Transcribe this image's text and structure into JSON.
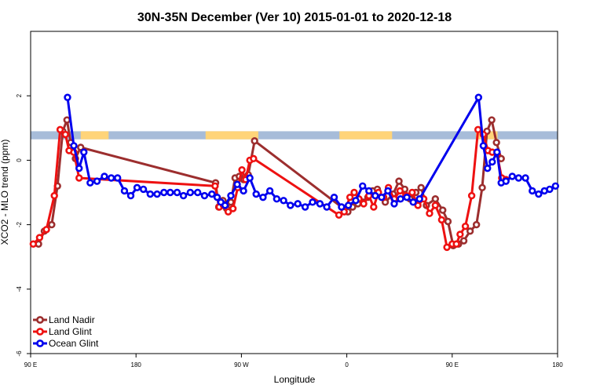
{
  "chart_data": {
    "type": "line",
    "title": "30N-35N December (Ver 10)   2015-01-01 to 2020-12-18",
    "xlabel": "Longitude",
    "ylabel": "XCO2 - MLO trend (ppm)",
    "xlim": [
      0,
      100
    ],
    "ylim": [
      -6,
      4
    ],
    "x_ticks": [
      {
        "pos": 0,
        "label": "90 E"
      },
      {
        "pos": 20,
        "label": "180"
      },
      {
        "pos": 40,
        "label": "90 W"
      },
      {
        "pos": 60,
        "label": "0"
      },
      {
        "pos": 80,
        "label": "90 E"
      },
      {
        "pos": 100,
        "label": "180"
      }
    ],
    "y_ticks": [
      -6,
      -4,
      -2,
      0,
      2
    ],
    "grid": false,
    "legend_position": "bottom-left",
    "land_ocean_band": {
      "y_range": [
        0.65,
        0.9
      ],
      "land_color": "#FFD479",
      "ocean_color": "#A7BCD9",
      "land_spans": [
        [
          9.5,
          14.8
        ],
        [
          33.2,
          43.2
        ],
        [
          58.6,
          68.6
        ],
        [
          84.5,
          88.6
        ]
      ]
    },
    "series": [
      {
        "name": "Land Nadir",
        "color": "#9C2E2E",
        "x": [
          1.5,
          2.6,
          4.0,
          5.1,
          6.1,
          6.9,
          7.6,
          8.5,
          9.5,
          35.1,
          35.7,
          36.5,
          37.2,
          38.0,
          38.8,
          39.6,
          40.4,
          41.3,
          42.5,
          60.2,
          61.1,
          62.1,
          63.1,
          64.0,
          64.9,
          65.8,
          67.3,
          68.8,
          69.9,
          71.0,
          72.0,
          73.1,
          74.1,
          75.1,
          76.8,
          78.2,
          79.2,
          80.2,
          81.2,
          82.2,
          83.4,
          84.6,
          85.7,
          86.6,
          87.5,
          88.4,
          89.3
        ],
        "values": [
          -2.6,
          -2.2,
          -2.0,
          -0.8,
          0.9,
          1.25,
          0.55,
          0.05,
          0.4,
          -0.7,
          -1.45,
          -1.25,
          -1.5,
          -1.3,
          -0.55,
          -0.5,
          -0.6,
          -0.45,
          0.6,
          -1.6,
          -1.45,
          -1.35,
          -1.3,
          -1.15,
          -0.95,
          -0.9,
          -1.3,
          -1.05,
          -0.65,
          -0.9,
          -1.2,
          -1.0,
          -0.85,
          -1.4,
          -1.2,
          -1.55,
          -1.9,
          -2.65,
          -2.6,
          -2.5,
          -2.2,
          -2.0,
          -0.85,
          0.9,
          1.25,
          0.55,
          0.05
        ]
      },
      {
        "name": "Land Glint",
        "color": "#EE1111",
        "x": [
          0.5,
          1.7,
          3.0,
          4.5,
          5.6,
          6.6,
          7.3,
          8.2,
          9.2,
          35.0,
          35.8,
          36.6,
          37.5,
          38.4,
          39.3,
          40.1,
          40.8,
          41.6,
          42.3,
          58.5,
          59.5,
          60.6,
          61.4,
          62.3,
          63.2,
          64.2,
          65.1,
          66.0,
          67.0,
          67.9,
          69.0,
          70.1,
          71.2,
          72.4,
          73.5,
          74.6,
          75.7,
          76.8,
          78.0,
          79.0,
          80.0,
          80.8,
          81.5,
          82.5,
          83.7,
          84.9,
          85.9,
          86.8,
          87.6,
          88.5,
          89.4,
          90.2
        ],
        "values": [
          -2.6,
          -2.4,
          -2.15,
          -1.1,
          0.95,
          0.8,
          0.3,
          0.25,
          -0.55,
          -0.8,
          -1.45,
          -1.4,
          -1.6,
          -1.5,
          -0.85,
          -0.3,
          -0.6,
          0.0,
          0.05,
          -1.7,
          -1.6,
          -1.15,
          -1.0,
          -1.2,
          -1.35,
          -1.1,
          -1.45,
          -1.0,
          -1.15,
          -0.85,
          -1.2,
          -0.95,
          -1.1,
          -1.0,
          -1.4,
          -1.2,
          -1.65,
          -1.4,
          -1.85,
          -2.7,
          -2.6,
          -2.6,
          -2.3,
          -2.05,
          -1.1,
          0.95,
          0.8,
          0.3,
          0.25,
          0.2,
          -0.55,
          -0.6
        ]
      },
      {
        "name": "Ocean Glint",
        "color": "#0000EE",
        "x": [
          7.0,
          8.2,
          9.2,
          10.1,
          11.3,
          12.6,
          14.0,
          15.3,
          16.5,
          17.8,
          19.0,
          20.2,
          21.4,
          22.7,
          24.0,
          25.3,
          26.5,
          27.8,
          29.0,
          30.3,
          31.7,
          33.0,
          34.4,
          35.4,
          36.1,
          36.9,
          38.0,
          39.2,
          40.4,
          41.6,
          42.8,
          44.1,
          45.4,
          46.7,
          48.0,
          49.3,
          50.7,
          52.1,
          53.5,
          54.9,
          56.2,
          57.6,
          59.0,
          60.3,
          61.7,
          63.0,
          64.2,
          65.4,
          66.6,
          67.8,
          69.0,
          70.2,
          71.4,
          72.6,
          73.8,
          85.0,
          85.9,
          86.7,
          87.6,
          88.5,
          89.3,
          90.2,
          91.4,
          92.6,
          93.9,
          95.2,
          96.4,
          97.5,
          98.5,
          99.6
        ],
        "values": [
          1.95,
          0.45,
          -0.25,
          0.25,
          -0.7,
          -0.65,
          -0.5,
          -0.55,
          -0.55,
          -0.95,
          -1.1,
          -0.85,
          -0.9,
          -1.05,
          -1.05,
          -1.0,
          -1.0,
          -1.0,
          -1.1,
          -1.0,
          -1.0,
          -1.1,
          -1.05,
          -1.15,
          -1.3,
          -1.4,
          -1.1,
          -0.75,
          -0.95,
          -0.55,
          -1.05,
          -1.15,
          -0.95,
          -1.2,
          -1.25,
          -1.4,
          -1.35,
          -1.45,
          -1.3,
          -1.35,
          -1.45,
          -1.15,
          -1.45,
          -1.4,
          -1.25,
          -0.8,
          -0.95,
          -1.1,
          -1.15,
          -0.95,
          -1.35,
          -1.2,
          -1.15,
          -1.3,
          -1.2,
          1.95,
          0.45,
          -0.25,
          -0.05,
          0.25,
          -0.7,
          -0.65,
          -0.5,
          -0.55,
          -0.55,
          -0.95,
          -1.05,
          -0.95,
          -0.9,
          -0.8
        ]
      }
    ]
  }
}
